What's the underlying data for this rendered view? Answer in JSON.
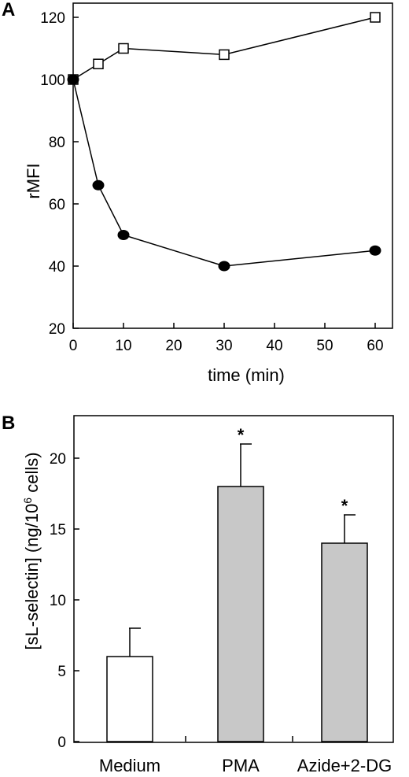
{
  "chart_data": [
    {
      "panel": "A",
      "type": "line",
      "xlabel": "time (min)",
      "ylabel": "rMFI",
      "xlim": [
        0,
        60
      ],
      "ylim": [
        20,
        120
      ],
      "xticks": [
        0,
        10,
        20,
        30,
        40,
        50,
        60
      ],
      "yticks": [
        20,
        40,
        60,
        80,
        100,
        120
      ],
      "series": [
        {
          "marker": "open-square",
          "x": [
            0,
            5,
            10,
            30,
            60
          ],
          "y": [
            100,
            105,
            110,
            108,
            120
          ]
        },
        {
          "marker": "filled-circle",
          "x": [
            0,
            5,
            10,
            30,
            60
          ],
          "y": [
            100,
            66,
            50,
            40,
            45
          ]
        }
      ]
    },
    {
      "panel": "B",
      "type": "bar",
      "ylabel_parts": [
        "[sL-selectin] (ng/10",
        "6",
        " cells)"
      ],
      "ylim": [
        0,
        23
      ],
      "yticks": [
        0,
        5,
        10,
        15,
        20
      ],
      "categories": [
        "Medium",
        "PMA",
        "Azide+2-DG"
      ],
      "values": [
        6,
        18,
        14
      ],
      "errors": [
        2,
        3,
        2
      ],
      "significance": [
        "",
        "*",
        "*"
      ],
      "colors": [
        "#ffffff",
        "#c8c8c8",
        "#c8c8c8"
      ]
    }
  ]
}
